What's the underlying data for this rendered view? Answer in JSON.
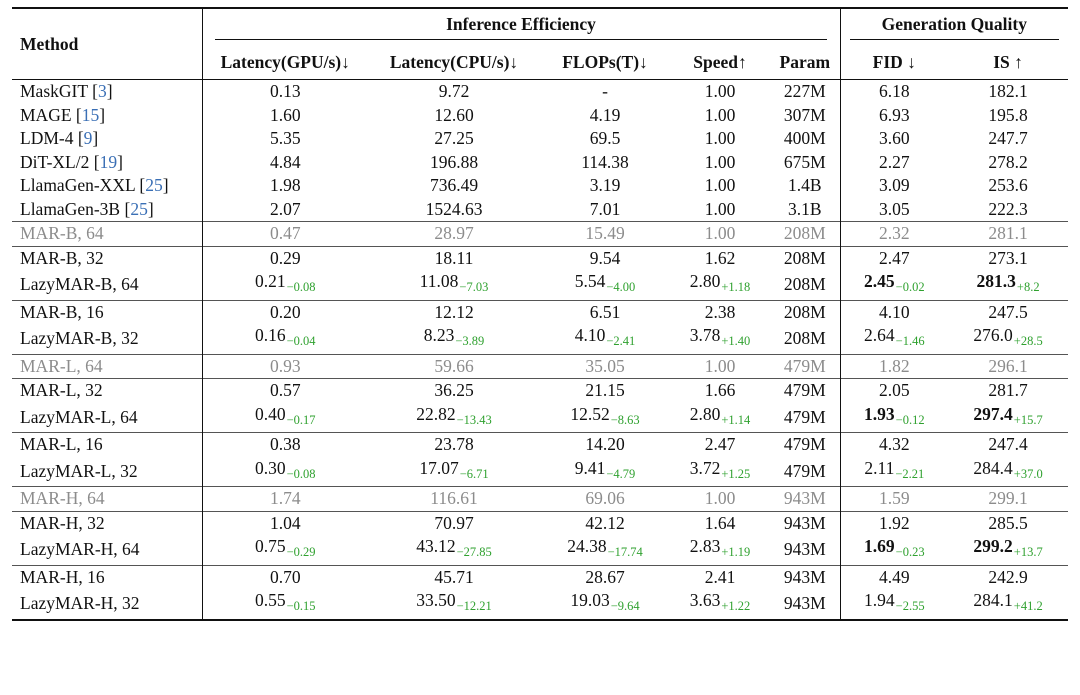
{
  "table": {
    "header": {
      "method": "Method",
      "group_efficiency": "Inference Efficiency",
      "group_quality": "Generation Quality",
      "cols": [
        "Latency(GPU/s)↓",
        "Latency(CPU/s)↓",
        "FLOPs(T)↓",
        "Speed↑",
        "Param",
        "FID ↓",
        "IS ↑"
      ]
    },
    "blocks": [
      {
        "gray": false,
        "rows": [
          {
            "name": "MaskGIT",
            "ref": "3",
            "cells": [
              {
                "v": "0.13"
              },
              {
                "v": "9.72"
              },
              {
                "v": "-"
              },
              {
                "v": "1.00"
              },
              {
                "v": "227M"
              },
              {
                "v": "6.18"
              },
              {
                "v": "182.1"
              }
            ]
          },
          {
            "name": "MAGE",
            "ref": "15",
            "cells": [
              {
                "v": "1.60"
              },
              {
                "v": "12.60"
              },
              {
                "v": "4.19"
              },
              {
                "v": "1.00"
              },
              {
                "v": "307M"
              },
              {
                "v": "6.93"
              },
              {
                "v": "195.8"
              }
            ]
          },
          {
            "name": "LDM-4",
            "ref": "9",
            "cells": [
              {
                "v": "5.35"
              },
              {
                "v": "27.25"
              },
              {
                "v": "69.5"
              },
              {
                "v": "1.00"
              },
              {
                "v": "400M"
              },
              {
                "v": "3.60"
              },
              {
                "v": "247.7"
              }
            ]
          },
          {
            "name": "DiT-XL/2",
            "ref": "19",
            "cells": [
              {
                "v": "4.84"
              },
              {
                "v": "196.88"
              },
              {
                "v": "114.38"
              },
              {
                "v": "1.00"
              },
              {
                "v": "675M"
              },
              {
                "v": "2.27"
              },
              {
                "v": "278.2"
              }
            ]
          },
          {
            "name": "LlamaGen-XXL",
            "ref": "25",
            "cells": [
              {
                "v": "1.98"
              },
              {
                "v": "736.49"
              },
              {
                "v": "3.19"
              },
              {
                "v": "1.00"
              },
              {
                "v": "1.4B"
              },
              {
                "v": "3.09"
              },
              {
                "v": "253.6"
              }
            ]
          },
          {
            "name": "LlamaGen-3B",
            "ref": "25",
            "cells": [
              {
                "v": "2.07"
              },
              {
                "v": "1524.63"
              },
              {
                "v": "7.01"
              },
              {
                "v": "1.00"
              },
              {
                "v": "3.1B"
              },
              {
                "v": "3.05"
              },
              {
                "v": "222.3"
              }
            ]
          }
        ]
      },
      {
        "gray": true,
        "rows": [
          {
            "name": "MAR-B, 64",
            "cells": [
              {
                "v": "0.47"
              },
              {
                "v": "28.97"
              },
              {
                "v": "15.49"
              },
              {
                "v": "1.00"
              },
              {
                "v": "208M"
              },
              {
                "v": "2.32"
              },
              {
                "v": "281.1"
              }
            ]
          }
        ]
      },
      {
        "gray": false,
        "rows": [
          {
            "name": "MAR-B, 32",
            "cells": [
              {
                "v": "0.29"
              },
              {
                "v": "18.11"
              },
              {
                "v": "9.54"
              },
              {
                "v": "1.62"
              },
              {
                "v": "208M"
              },
              {
                "v": "2.47"
              },
              {
                "v": "273.1"
              }
            ]
          },
          {
            "name": "LazyMAR-B, 64",
            "cells": [
              {
                "v": "0.21",
                "d": "−0.08"
              },
              {
                "v": "11.08",
                "d": "−7.03"
              },
              {
                "v": "5.54",
                "d": "−4.00"
              },
              {
                "v": "2.80",
                "d": "+1.18"
              },
              {
                "v": "208M"
              },
              {
                "v": "2.45",
                "d": "−0.02",
                "b": true
              },
              {
                "v": "281.3",
                "d": "+8.2",
                "b": true
              }
            ]
          }
        ]
      },
      {
        "gray": false,
        "rows": [
          {
            "name": "MAR-B, 16",
            "cells": [
              {
                "v": "0.20"
              },
              {
                "v": "12.12"
              },
              {
                "v": "6.51"
              },
              {
                "v": "2.38"
              },
              {
                "v": "208M"
              },
              {
                "v": "4.10"
              },
              {
                "v": "247.5"
              }
            ]
          },
          {
            "name": "LazyMAR-B, 32",
            "cells": [
              {
                "v": "0.16",
                "d": "−0.04"
              },
              {
                "v": "8.23",
                "d": "−3.89"
              },
              {
                "v": "4.10",
                "d": "−2.41"
              },
              {
                "v": "3.78",
                "d": "+1.40"
              },
              {
                "v": "208M"
              },
              {
                "v": "2.64",
                "d": "−1.46"
              },
              {
                "v": "276.0",
                "d": "+28.5"
              }
            ]
          }
        ]
      },
      {
        "gray": true,
        "rows": [
          {
            "name": "MAR-L, 64",
            "cells": [
              {
                "v": "0.93"
              },
              {
                "v": "59.66"
              },
              {
                "v": "35.05"
              },
              {
                "v": "1.00"
              },
              {
                "v": "479M"
              },
              {
                "v": "1.82"
              },
              {
                "v": "296.1"
              }
            ]
          }
        ]
      },
      {
        "gray": false,
        "rows": [
          {
            "name": "MAR-L, 32",
            "cells": [
              {
                "v": "0.57"
              },
              {
                "v": "36.25"
              },
              {
                "v": "21.15"
              },
              {
                "v": "1.66"
              },
              {
                "v": "479M"
              },
              {
                "v": "2.05"
              },
              {
                "v": "281.7"
              }
            ]
          },
          {
            "name": "LazyMAR-L, 64",
            "cells": [
              {
                "v": "0.40",
                "d": "−0.17"
              },
              {
                "v": "22.82",
                "d": "−13.43"
              },
              {
                "v": "12.52",
                "d": "−8.63"
              },
              {
                "v": "2.80",
                "d": "+1.14"
              },
              {
                "v": "479M"
              },
              {
                "v": "1.93",
                "d": "−0.12",
                "b": true
              },
              {
                "v": "297.4",
                "d": "+15.7",
                "b": true
              }
            ]
          }
        ]
      },
      {
        "gray": false,
        "rows": [
          {
            "name": "MAR-L, 16",
            "cells": [
              {
                "v": "0.38"
              },
              {
                "v": "23.78"
              },
              {
                "v": "14.20"
              },
              {
                "v": "2.47"
              },
              {
                "v": "479M"
              },
              {
                "v": "4.32"
              },
              {
                "v": "247.4"
              }
            ]
          },
          {
            "name": "LazyMAR-L, 32",
            "cells": [
              {
                "v": "0.30",
                "d": "−0.08"
              },
              {
                "v": "17.07",
                "d": "−6.71"
              },
              {
                "v": "9.41",
                "d": "−4.79"
              },
              {
                "v": "3.72",
                "d": "+1.25"
              },
              {
                "v": "479M"
              },
              {
                "v": "2.11",
                "d": "−2.21"
              },
              {
                "v": "284.4",
                "d": "+37.0"
              }
            ]
          }
        ]
      },
      {
        "gray": true,
        "rows": [
          {
            "name": "MAR-H, 64",
            "cells": [
              {
                "v": "1.74"
              },
              {
                "v": "116.61"
              },
              {
                "v": "69.06"
              },
              {
                "v": "1.00"
              },
              {
                "v": "943M"
              },
              {
                "v": "1.59"
              },
              {
                "v": "299.1"
              }
            ]
          }
        ]
      },
      {
        "gray": false,
        "rows": [
          {
            "name": "MAR-H, 32",
            "cells": [
              {
                "v": "1.04"
              },
              {
                "v": "70.97"
              },
              {
                "v": "42.12"
              },
              {
                "v": "1.64"
              },
              {
                "v": "943M"
              },
              {
                "v": "1.92"
              },
              {
                "v": "285.5"
              }
            ]
          },
          {
            "name": "LazyMAR-H, 64",
            "cells": [
              {
                "v": "0.75",
                "d": "−0.29"
              },
              {
                "v": "43.12",
                "d": "−27.85"
              },
              {
                "v": "24.38",
                "d": "−17.74"
              },
              {
                "v": "2.83",
                "d": "+1.19"
              },
              {
                "v": "943M"
              },
              {
                "v": "1.69",
                "d": "−0.23",
                "b": true
              },
              {
                "v": "299.2",
                "d": "+13.7",
                "b": true
              }
            ]
          }
        ]
      },
      {
        "gray": false,
        "rows": [
          {
            "name": "MAR-H, 16",
            "cells": [
              {
                "v": "0.70"
              },
              {
                "v": "45.71"
              },
              {
                "v": "28.67"
              },
              {
                "v": "2.41"
              },
              {
                "v": "943M"
              },
              {
                "v": "4.49"
              },
              {
                "v": "242.9"
              }
            ]
          },
          {
            "name": "LazyMAR-H, 32",
            "cells": [
              {
                "v": "0.55",
                "d": "−0.15"
              },
              {
                "v": "33.50",
                "d": "−12.21"
              },
              {
                "v": "19.03",
                "d": "−9.64"
              },
              {
                "v": "3.63",
                "d": "+1.22"
              },
              {
                "v": "943M"
              },
              {
                "v": "1.94",
                "d": "−2.55"
              },
              {
                "v": "284.1",
                "d": "+41.2"
              }
            ]
          }
        ]
      }
    ]
  }
}
